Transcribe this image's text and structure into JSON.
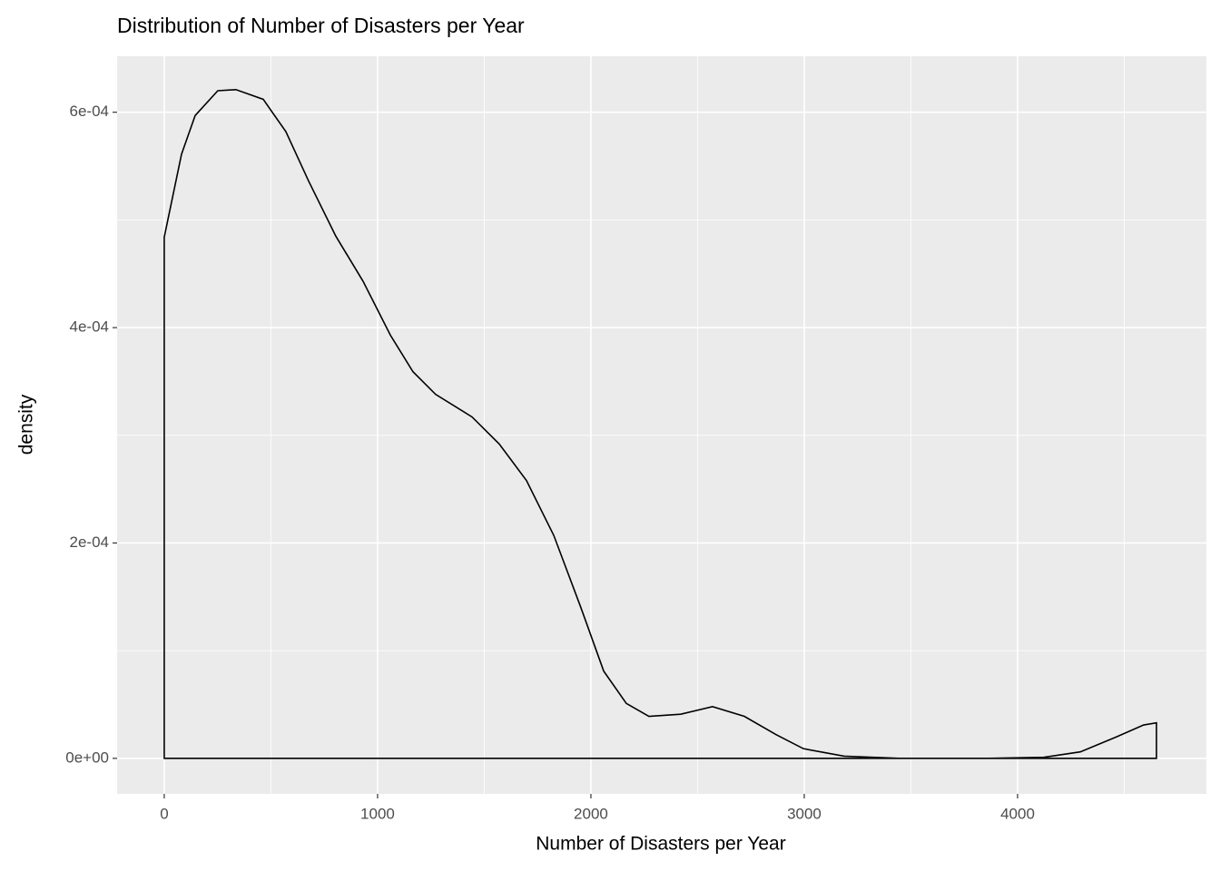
{
  "chart_data": {
    "type": "area",
    "title": "Distribution of Number of Disasters per Year",
    "x_label": "Number of Disasters per Year",
    "y_label": "density",
    "x": [
      0,
      81,
      145,
      251,
      336,
      464,
      570,
      677,
      804,
      932,
      1060,
      1166,
      1272,
      1443,
      1570,
      1698,
      1826,
      1953,
      2060,
      2166,
      2272,
      2421,
      2570,
      2719,
      2868,
      2996,
      3187,
      3443,
      3868,
      4123,
      4294,
      4464,
      4591,
      4651
    ],
    "series": [
      {
        "color": "#000000",
        "values": [
          0.000484,
          0.000561,
          0.000597,
          0.00062,
          0.000621,
          0.000612,
          0.000582,
          0.000536,
          0.000485,
          0.000443,
          0.000393,
          0.000359,
          0.000338,
          0.000317,
          0.000292,
          0.000258,
          0.000207,
          0.00014,
          8.1e-05,
          5.1e-05,
          3.9e-05,
          4.1e-05,
          4.8e-05,
          3.9e-05,
          2.2e-05,
          9e-06,
          2e-06,
          0,
          0,
          1e-06,
          6e-06,
          2e-05,
          3.1e-05,
          3.3e-05
        ]
      }
    ],
    "xlim": [
      -221,
      4885
    ],
    "ylim": [
      -3.3e-05,
      0.000652
    ],
    "xticks": [
      0,
      1000,
      2000,
      3000,
      4000
    ],
    "x_minor_ticks": [
      500,
      1500,
      2500,
      3500,
      4500
    ],
    "yticks": [
      {
        "value": 0,
        "label": "0e+00"
      },
      {
        "value": 0.0002,
        "label": "2e-04"
      },
      {
        "value": 0.0004,
        "label": "4e-04"
      },
      {
        "value": 0.0006,
        "label": "6e-04"
      }
    ],
    "y_minor_ticks": [
      0.0001,
      0.0003,
      0.0005
    ],
    "grid": true
  }
}
